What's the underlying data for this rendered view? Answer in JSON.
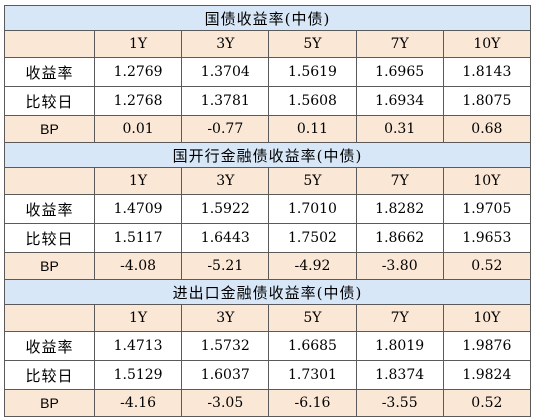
{
  "sections": [
    {
      "title": "国债收益率(中债)",
      "tenors": [
        "1Y",
        "3Y",
        "5Y",
        "7Y",
        "10Y"
      ],
      "rows": [
        {
          "label": "收益率",
          "values": [
            "1.2769",
            "1.3704",
            "1.5619",
            "1.6965",
            "1.8143"
          ]
        },
        {
          "label": "比较日",
          "values": [
            "1.2768",
            "1.3781",
            "1.5608",
            "1.6934",
            "1.8075"
          ]
        },
        {
          "label": "BP",
          "values": [
            "0.01",
            "-0.77",
            "0.11",
            "0.31",
            "0.68"
          ]
        }
      ]
    },
    {
      "title": "国开行金融债收益率(中债)",
      "tenors": [
        "1Y",
        "3Y",
        "5Y",
        "7Y",
        "10Y"
      ],
      "rows": [
        {
          "label": "收益率",
          "values": [
            "1.4709",
            "1.5922",
            "1.7010",
            "1.8282",
            "1.9705"
          ]
        },
        {
          "label": "比较日",
          "values": [
            "1.5117",
            "1.6443",
            "1.7502",
            "1.8662",
            "1.9653"
          ]
        },
        {
          "label": "BP",
          "values": [
            "-4.08",
            "-5.21",
            "-4.92",
            "-3.80",
            "0.52"
          ]
        }
      ]
    },
    {
      "title": "进出口金融债收益率(中债)",
      "tenors": [
        "1Y",
        "3Y",
        "5Y",
        "7Y",
        "10Y"
      ],
      "rows": [
        {
          "label": "收益率",
          "values": [
            "1.4713",
            "1.5732",
            "1.6685",
            "1.8019",
            "1.9876"
          ]
        },
        {
          "label": "比较日",
          "values": [
            "1.5129",
            "1.6037",
            "1.7301",
            "1.8374",
            "1.9824"
          ]
        },
        {
          "label": "BP",
          "values": [
            "-4.16",
            "-3.05",
            "-6.16",
            "-3.55",
            "0.52"
          ]
        }
      ]
    }
  ]
}
